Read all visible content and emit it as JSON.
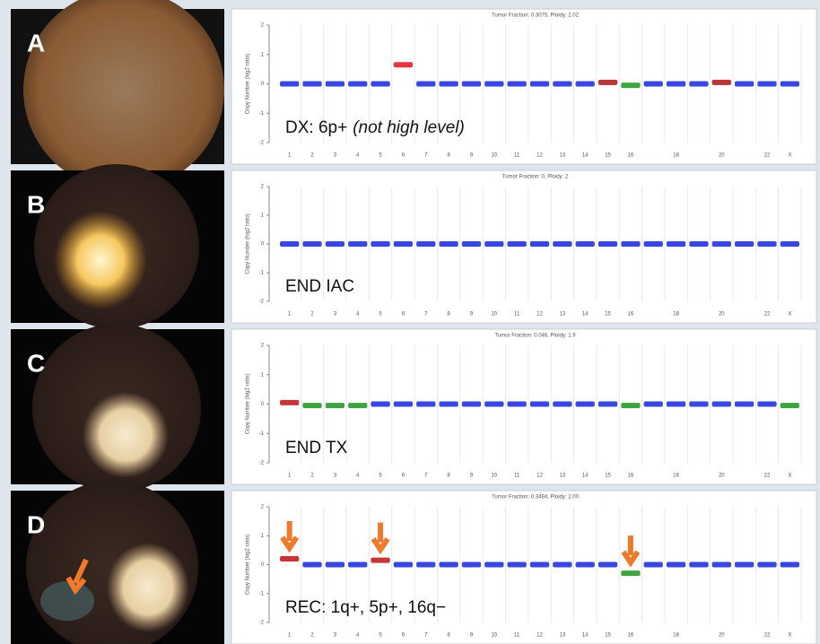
{
  "chart_data": [
    {
      "type": "segments",
      "panel": "A",
      "title": "Tumor Fraction: 0.3075, Ploidy: 2.02",
      "y_label": "Copy Number (log2 ratio)",
      "annotation": "DX: 6p+",
      "annotation_italic": "(not high level)",
      "categories": [
        "1",
        "2",
        "3",
        "4",
        "5",
        "6",
        "7",
        "8",
        "9",
        "10",
        "11",
        "12",
        "13",
        "14",
        "15",
        "16",
        null,
        "18",
        null,
        "20",
        null,
        "22",
        "X"
      ],
      "values": [
        0,
        0,
        0,
        0,
        0,
        0.65,
        0,
        0,
        0,
        0,
        0,
        0,
        0,
        0,
        0.05,
        -0.05,
        0,
        0,
        0,
        0.05,
        0,
        0,
        0
      ],
      "colors": [
        "#2233dd",
        "#2233dd",
        "#2233dd",
        "#2233dd",
        "#2233dd",
        "#e0202a",
        "#2233dd",
        "#2233dd",
        "#2233dd",
        "#2233dd",
        "#2233dd",
        "#2233dd",
        "#2233dd",
        "#2233dd",
        "#b02020",
        "#2a9a2a",
        "#2233dd",
        "#2233dd",
        "#2233dd",
        "#b02020",
        "#2233dd",
        "#2233dd",
        "#2233dd"
      ],
      "ylim": [
        -2,
        2
      ],
      "yticks": [
        2,
        1,
        0,
        -1,
        -2
      ]
    },
    {
      "type": "segments",
      "panel": "B",
      "title": "Tumor Fraction: 0, Ploidy: 2",
      "y_label": "Copy Number (log2 ratio)",
      "annotation": "END IAC",
      "categories": [
        "1",
        "2",
        "3",
        "4",
        "5",
        "6",
        "7",
        "8",
        "9",
        "10",
        "11",
        "12",
        "13",
        "14",
        "15",
        "16",
        null,
        "18",
        null,
        "20",
        null,
        "22",
        "X"
      ],
      "values": [
        0,
        0,
        0,
        0,
        0,
        0,
        0,
        0,
        0,
        0,
        0,
        0,
        0,
        0,
        0,
        0,
        0,
        0,
        0,
        0,
        0,
        0,
        0
      ],
      "colors": [
        "#2233dd",
        "#2233dd",
        "#2233dd",
        "#2233dd",
        "#2233dd",
        "#2233dd",
        "#2233dd",
        "#2233dd",
        "#2233dd",
        "#2233dd",
        "#2233dd",
        "#2233dd",
        "#2233dd",
        "#2233dd",
        "#2233dd",
        "#2233dd",
        "#2233dd",
        "#2233dd",
        "#2233dd",
        "#2233dd",
        "#2233dd",
        "#2233dd",
        "#2233dd"
      ],
      "ylim": [
        -2,
        2
      ],
      "yticks": [
        2,
        1,
        0,
        -1,
        -2
      ]
    },
    {
      "type": "segments",
      "panel": "C",
      "title": "Tumor Fraction: 0.046, Ploidy: 1.9",
      "y_label": "Copy Number (log2 ratio)",
      "annotation": "END TX",
      "categories": [
        "1",
        "2",
        "3",
        "4",
        "5",
        "6",
        "7",
        "8",
        "9",
        "10",
        "11",
        "12",
        "13",
        "14",
        "15",
        "16",
        null,
        "18",
        null,
        "20",
        null,
        "22",
        "X"
      ],
      "values": [
        0.05,
        -0.05,
        -0.05,
        -0.05,
        0,
        0,
        0,
        0,
        0,
        0,
        0,
        0,
        0,
        0,
        0,
        -0.05,
        0,
        0,
        0,
        0,
        0,
        0,
        -0.05
      ],
      "colors": [
        "#c02020",
        "#2a9a2a",
        "#2a9a2a",
        "#2a9a2a",
        "#2233dd",
        "#2233dd",
        "#2233dd",
        "#2233dd",
        "#2233dd",
        "#2233dd",
        "#2233dd",
        "#2233dd",
        "#2233dd",
        "#2233dd",
        "#2233dd",
        "#2a9a2a",
        "#2233dd",
        "#2233dd",
        "#2233dd",
        "#2233dd",
        "#2233dd",
        "#2233dd",
        "#2a9a2a"
      ],
      "ylim": [
        -2,
        2
      ],
      "yticks": [
        2,
        1,
        0,
        -1,
        -2
      ]
    },
    {
      "type": "segments",
      "panel": "D",
      "title": "Tumor Fraction: 0.3494, Ploidy: 2.00",
      "y_label": "Copy Number (log2 ratio)",
      "annotation": "REC: 1q+, 5p+, 16q−",
      "categories": [
        "1",
        "2",
        "3",
        "4",
        "5",
        "6",
        "7",
        "8",
        "9",
        "10",
        "11",
        "12",
        "13",
        "14",
        "15",
        "16",
        null,
        "18",
        null,
        "20",
        null,
        "22",
        "X"
      ],
      "values": [
        0.2,
        0,
        0,
        0,
        0.15,
        0,
        0,
        0,
        0,
        0,
        0,
        0,
        0,
        0,
        0,
        -0.3,
        0,
        0,
        0,
        0,
        0,
        0,
        0
      ],
      "colors": [
        "#c02020",
        "#2233dd",
        "#2233dd",
        "#2233dd",
        "#c02020",
        "#2233dd",
        "#2233dd",
        "#2233dd",
        "#2233dd",
        "#2233dd",
        "#2233dd",
        "#2233dd",
        "#2233dd",
        "#2233dd",
        "#2233dd",
        "#2a9a2a",
        "#2233dd",
        "#2233dd",
        "#2233dd",
        "#2233dd",
        "#2233dd",
        "#2233dd",
        "#2233dd"
      ],
      "arrows": [
        0,
        4,
        15
      ],
      "ylim": [
        -2,
        2
      ],
      "yticks": [
        2,
        1,
        0,
        -1,
        -2
      ]
    }
  ]
}
